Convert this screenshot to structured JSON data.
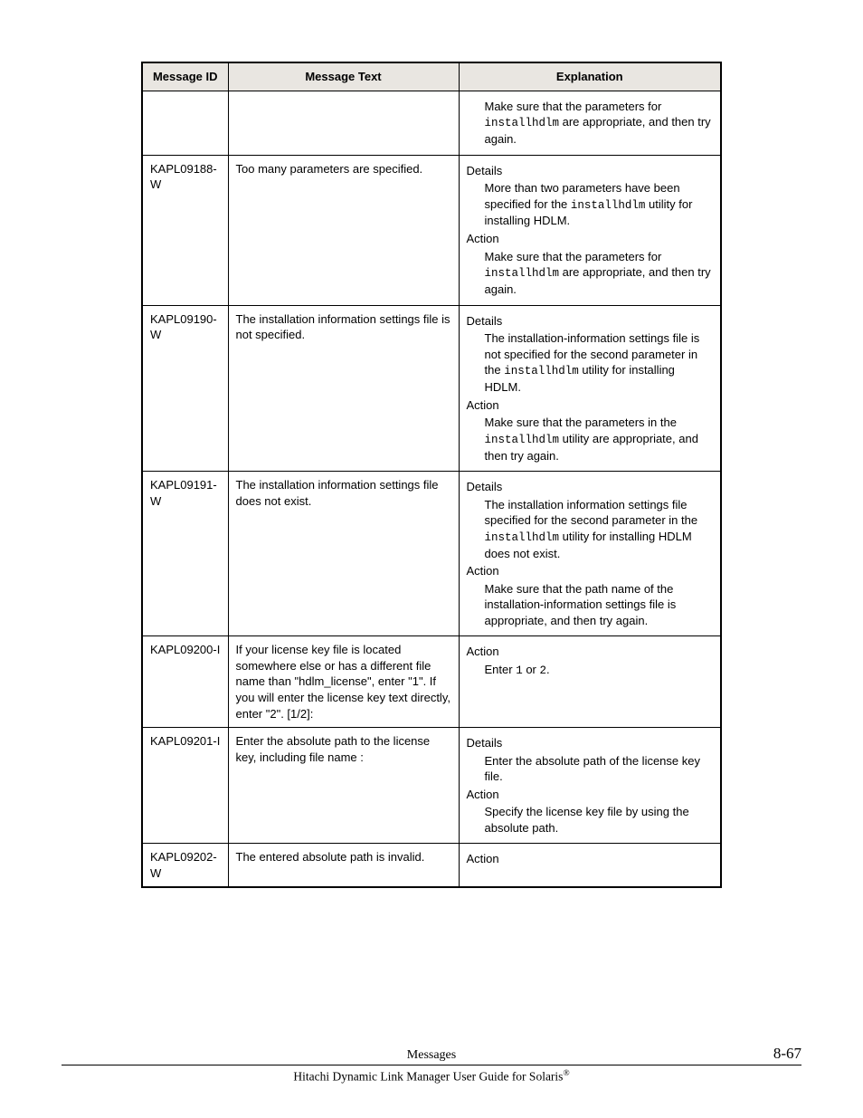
{
  "headers": {
    "id": "Message ID",
    "text": "Message Text",
    "exp": "Explanation"
  },
  "rows": [
    {
      "id": "",
      "text": "",
      "exp": [
        {
          "type": "sub",
          "segments": [
            {
              "t": "Make sure that the parameters for "
            },
            {
              "t": "installhdlm",
              "code": true
            },
            {
              "t": " are appropriate, and then try again."
            }
          ]
        }
      ]
    },
    {
      "id": "KAPL09188-W",
      "text": "Too many parameters are specified.",
      "exp": [
        {
          "type": "label",
          "text": "Details"
        },
        {
          "type": "sub",
          "segments": [
            {
              "t": "More than two parameters have been specified for the "
            },
            {
              "t": "installhdlm",
              "code": true
            },
            {
              "t": " utility for installing HDLM."
            }
          ]
        },
        {
          "type": "label",
          "text": "Action"
        },
        {
          "type": "sub",
          "segments": [
            {
              "t": "Make sure that the parameters for "
            },
            {
              "t": "installhdlm",
              "code": true
            },
            {
              "t": " are appropriate, and then try again."
            }
          ]
        }
      ]
    },
    {
      "id": "KAPL09190-W",
      "text": "The installation information settings file is not specified.",
      "exp": [
        {
          "type": "label",
          "text": "Details"
        },
        {
          "type": "sub",
          "segments": [
            {
              "t": "The installation-information settings file is not specified for the second parameter in the "
            },
            {
              "t": "installhdlm",
              "code": true
            },
            {
              "t": " utility for installing HDLM."
            }
          ]
        },
        {
          "type": "label",
          "text": "Action"
        },
        {
          "type": "sub",
          "segments": [
            {
              "t": "Make sure that the parameters in the "
            },
            {
              "t": "installhdlm",
              "code": true
            },
            {
              "t": " utility are appropriate, and then try again."
            }
          ]
        }
      ]
    },
    {
      "id": "KAPL09191-W",
      "text": "The installation information settings file does not exist.",
      "exp": [
        {
          "type": "label",
          "text": "Details"
        },
        {
          "type": "sub",
          "segments": [
            {
              "t": "The installation information settings file specified for the second parameter in the "
            },
            {
              "t": "installhdlm",
              "code": true
            },
            {
              "t": " utility for installing HDLM does not exist."
            }
          ]
        },
        {
          "type": "label",
          "text": "Action"
        },
        {
          "type": "sub",
          "segments": [
            {
              "t": "Make sure that the path name of the installation-information settings file is appropriate, and then try again."
            }
          ]
        }
      ]
    },
    {
      "id": "KAPL09200-I",
      "text": "If your license key file is located somewhere else or has a different file name than \"hdlm_license\", enter \"1\". If you will enter the license key text directly, enter \"2\". [1/2]:",
      "exp": [
        {
          "type": "label",
          "text": "Action"
        },
        {
          "type": "sub",
          "segments": [
            {
              "t": "Enter "
            },
            {
              "t": "1",
              "code": true
            },
            {
              "t": " or "
            },
            {
              "t": "2",
              "code": true
            },
            {
              "t": "."
            }
          ]
        }
      ]
    },
    {
      "id": "KAPL09201-I",
      "text": "Enter the absolute path to the license key, including file name :",
      "exp": [
        {
          "type": "label",
          "text": "Details"
        },
        {
          "type": "sub",
          "segments": [
            {
              "t": "Enter the absolute path of the license key file."
            }
          ]
        },
        {
          "type": "label",
          "text": "Action"
        },
        {
          "type": "sub",
          "segments": [
            {
              "t": "Specify the license key file by using the absolute path."
            }
          ]
        }
      ]
    },
    {
      "id": "KAPL09202-W",
      "text": "The entered absolute path is invalid.",
      "exp": [
        {
          "type": "label",
          "text": "Action"
        }
      ]
    }
  ],
  "footer": {
    "center": "Messages",
    "right": "8-67",
    "bottom_pre": "Hitachi Dynamic Link Manager User Guide for Solaris",
    "bottom_sup": "®"
  }
}
